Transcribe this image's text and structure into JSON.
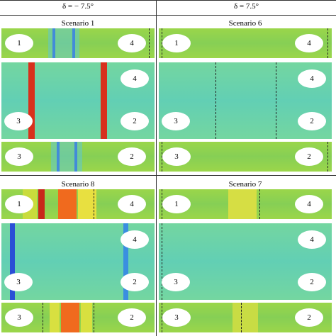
{
  "header": {
    "columns": [
      "δ = − 7.5°",
      "δ = 7.5°"
    ]
  },
  "panels": [
    {
      "title": "Scenario 1",
      "strips": [
        {
          "labels": [
            "1",
            "4"
          ]
        },
        {
          "labels": [
            "4",
            "3",
            "2"
          ]
        },
        {
          "labels": [
            "3",
            "2"
          ]
        }
      ]
    },
    {
      "title": "Scenario 6",
      "strips": [
        {
          "labels": [
            "1",
            "4"
          ]
        },
        {
          "labels": [
            "4",
            "3",
            "2"
          ]
        },
        {
          "labels": [
            "3",
            "2"
          ]
        }
      ]
    },
    {
      "title": "Scenario 8",
      "strips": [
        {
          "labels": [
            "1",
            "4"
          ]
        },
        {
          "labels": [
            "4",
            "3",
            "2"
          ]
        },
        {
          "labels": [
            "3",
            "2"
          ]
        }
      ]
    },
    {
      "title": "Scenario 7",
      "strips": [
        {
          "labels": [
            "1",
            "4"
          ]
        },
        {
          "labels": [
            "4",
            "3",
            "2"
          ]
        },
        {
          "labels": [
            "3",
            "2"
          ]
        }
      ]
    }
  ]
}
